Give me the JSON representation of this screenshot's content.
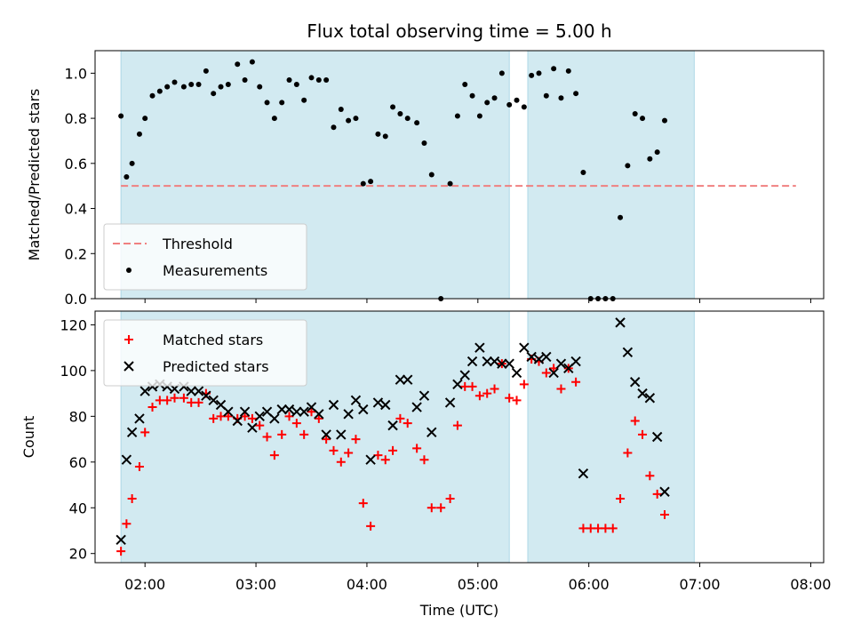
{
  "chart_data": {
    "title": "Flux total observing time = 5.00 h",
    "xlabel": "Time (UTC)",
    "x_ticks": [
      "02:00",
      "03:00",
      "04:00",
      "05:00",
      "06:00",
      "07:00",
      "08:00"
    ],
    "x_range": [
      "01:33",
      "08:07"
    ],
    "shaded_intervals": [
      [
        "01:47",
        "05:17"
      ],
      [
        "05:27",
        "06:57"
      ]
    ],
    "colors": {
      "shade": "#add8e6",
      "threshold": "#f08080",
      "measurements": "#000000",
      "matched": "#ff0000",
      "predicted": "#000000"
    },
    "panels": [
      {
        "type": "scatter",
        "ylabel": "Matched/Predicted stars",
        "ylim": [
          0,
          1.1
        ],
        "y_ticks": [
          "0.0",
          "0.2",
          "0.4",
          "0.6",
          "0.8",
          "1.0"
        ],
        "legend_position": "lower-left",
        "threshold": {
          "name": "Threshold",
          "value": 0.5,
          "x_start": "01:47",
          "x_end": "07:52"
        },
        "series": [
          {
            "name": "Measurements",
            "marker": "dot",
            "points": [
              [
                "01:47",
                0.81
              ],
              [
                "01:50",
                0.54
              ],
              [
                "01:53",
                0.6
              ],
              [
                "01:57",
                0.73
              ],
              [
                "02:00",
                0.8
              ],
              [
                "02:04",
                0.9
              ],
              [
                "02:08",
                0.92
              ],
              [
                "02:12",
                0.94
              ],
              [
                "02:16",
                0.96
              ],
              [
                "02:21",
                0.94
              ],
              [
                "02:25",
                0.95
              ],
              [
                "02:29",
                0.95
              ],
              [
                "02:33",
                1.01
              ],
              [
                "02:37",
                0.91
              ],
              [
                "02:41",
                0.94
              ],
              [
                "02:45",
                0.95
              ],
              [
                "02:50",
                1.04
              ],
              [
                "02:54",
                0.97
              ],
              [
                "02:58",
                1.05
              ],
              [
                "03:02",
                0.94
              ],
              [
                "03:06",
                0.87
              ],
              [
                "03:10",
                0.8
              ],
              [
                "03:14",
                0.87
              ],
              [
                "03:18",
                0.97
              ],
              [
                "03:22",
                0.95
              ],
              [
                "03:26",
                0.88
              ],
              [
                "03:30",
                0.98
              ],
              [
                "03:34",
                0.97
              ],
              [
                "03:38",
                0.97
              ],
              [
                "03:42",
                0.76
              ],
              [
                "03:46",
                0.84
              ],
              [
                "03:50",
                0.79
              ],
              [
                "03:54",
                0.8
              ],
              [
                "03:58",
                0.51
              ],
              [
                "04:02",
                0.52
              ],
              [
                "04:06",
                0.73
              ],
              [
                "04:10",
                0.72
              ],
              [
                "04:14",
                0.85
              ],
              [
                "04:18",
                0.82
              ],
              [
                "04:22",
                0.8
              ],
              [
                "04:27",
                0.78
              ],
              [
                "04:31",
                0.69
              ],
              [
                "04:35",
                0.55
              ],
              [
                "04:40",
                0.0
              ],
              [
                "04:45",
                0.51
              ],
              [
                "04:49",
                0.81
              ],
              [
                "04:53",
                0.95
              ],
              [
                "04:57",
                0.9
              ],
              [
                "05:01",
                0.81
              ],
              [
                "05:05",
                0.87
              ],
              [
                "05:09",
                0.89
              ],
              [
                "05:13",
                1.0
              ],
              [
                "05:17",
                0.86
              ],
              [
                "05:21",
                0.88
              ],
              [
                "05:25",
                0.85
              ],
              [
                "05:29",
                0.99
              ],
              [
                "05:33",
                1.0
              ],
              [
                "05:37",
                0.9
              ],
              [
                "05:41",
                1.02
              ],
              [
                "05:45",
                0.89
              ],
              [
                "05:49",
                1.01
              ],
              [
                "05:53",
                0.91
              ],
              [
                "05:57",
                0.56
              ],
              [
                "06:01",
                0.0
              ],
              [
                "06:05",
                0.0
              ],
              [
                "06:09",
                0.0
              ],
              [
                "06:13",
                0.0
              ],
              [
                "06:17",
                0.36
              ],
              [
                "06:21",
                0.59
              ],
              [
                "06:25",
                0.82
              ],
              [
                "06:29",
                0.8
              ],
              [
                "06:33",
                0.62
              ],
              [
                "06:37",
                0.65
              ],
              [
                "06:41",
                0.79
              ]
            ]
          }
        ]
      },
      {
        "type": "scatter",
        "ylabel": "Count",
        "ylim": [
          16,
          126
        ],
        "y_ticks": [
          "20",
          "40",
          "60",
          "80",
          "100",
          "120"
        ],
        "legend_position": "upper-left",
        "series": [
          {
            "name": "Matched stars",
            "marker": "plus",
            "points": [
              [
                "01:47",
                21
              ],
              [
                "01:50",
                33
              ],
              [
                "01:53",
                44
              ],
              [
                "01:57",
                58
              ],
              [
                "02:00",
                73
              ],
              [
                "02:04",
                84
              ],
              [
                "02:08",
                87
              ],
              [
                "02:12",
                87
              ],
              [
                "02:16",
                88
              ],
              [
                "02:21",
                88
              ],
              [
                "02:25",
                86
              ],
              [
                "02:29",
                86
              ],
              [
                "02:33",
                90
              ],
              [
                "02:37",
                79
              ],
              [
                "02:41",
                80
              ],
              [
                "02:45",
                80
              ],
              [
                "02:50",
                79
              ],
              [
                "02:54",
                80
              ],
              [
                "02:58",
                79
              ],
              [
                "03:02",
                76
              ],
              [
                "03:06",
                71
              ],
              [
                "03:10",
                63
              ],
              [
                "03:14",
                72
              ],
              [
                "03:18",
                80
              ],
              [
                "03:22",
                77
              ],
              [
                "03:26",
                72
              ],
              [
                "03:30",
                82
              ],
              [
                "03:34",
                79
              ],
              [
                "03:38",
                70
              ],
              [
                "03:42",
                65
              ],
              [
                "03:46",
                60
              ],
              [
                "03:50",
                64
              ],
              [
                "03:54",
                70
              ],
              [
                "03:58",
                42
              ],
              [
                "04:02",
                32
              ],
              [
                "04:06",
                63
              ],
              [
                "04:10",
                61
              ],
              [
                "04:14",
                65
              ],
              [
                "04:18",
                79
              ],
              [
                "04:22",
                77
              ],
              [
                "04:27",
                66
              ],
              [
                "04:31",
                61
              ],
              [
                "04:35",
                40
              ],
              [
                "04:40",
                40
              ],
              [
                "04:45",
                44
              ],
              [
                "04:49",
                76
              ],
              [
                "04:53",
                93
              ],
              [
                "04:57",
                93
              ],
              [
                "05:01",
                89
              ],
              [
                "05:05",
                90
              ],
              [
                "05:09",
                92
              ],
              [
                "05:13",
                103
              ],
              [
                "05:17",
                88
              ],
              [
                "05:21",
                87
              ],
              [
                "05:25",
                94
              ],
              [
                "05:29",
                105
              ],
              [
                "05:33",
                104
              ],
              [
                "05:37",
                99
              ],
              [
                "05:41",
                101
              ],
              [
                "05:45",
                92
              ],
              [
                "05:49",
                101
              ],
              [
                "05:53",
                95
              ],
              [
                "05:57",
                31
              ],
              [
                "06:01",
                31
              ],
              [
                "06:05",
                31
              ],
              [
                "06:09",
                31
              ],
              [
                "06:13",
                31
              ],
              [
                "06:17",
                44
              ],
              [
                "06:21",
                64
              ],
              [
                "06:25",
                78
              ],
              [
                "06:29",
                72
              ],
              [
                "06:33",
                54
              ],
              [
                "06:37",
                46
              ],
              [
                "06:41",
                37
              ]
            ]
          },
          {
            "name": "Predicted stars",
            "marker": "x",
            "points": [
              [
                "01:47",
                26
              ],
              [
                "01:50",
                61
              ],
              [
                "01:53",
                73
              ],
              [
                "01:57",
                79
              ],
              [
                "02:00",
                91
              ],
              [
                "02:04",
                93
              ],
              [
                "02:08",
                94
              ],
              [
                "02:12",
                93
              ],
              [
                "02:16",
                92
              ],
              [
                "02:21",
                93
              ],
              [
                "02:25",
                91
              ],
              [
                "02:29",
                91
              ],
              [
                "02:33",
                89
              ],
              [
                "02:37",
                87
              ],
              [
                "02:41",
                85
              ],
              [
                "02:45",
                82
              ],
              [
                "02:50",
                78
              ],
              [
                "02:54",
                82
              ],
              [
                "02:58",
                75
              ],
              [
                "03:02",
                80
              ],
              [
                "03:06",
                82
              ],
              [
                "03:10",
                79
              ],
              [
                "03:14",
                83
              ],
              [
                "03:18",
                83
              ],
              [
                "03:22",
                82
              ],
              [
                "03:26",
                82
              ],
              [
                "03:30",
                84
              ],
              [
                "03:34",
                81
              ],
              [
                "03:38",
                72
              ],
              [
                "03:42",
                85
              ],
              [
                "03:46",
                72
              ],
              [
                "03:50",
                81
              ],
              [
                "03:54",
                87
              ],
              [
                "03:58",
                83
              ],
              [
                "04:02",
                61
              ],
              [
                "04:06",
                86
              ],
              [
                "04:10",
                85
              ],
              [
                "04:14",
                76
              ],
              [
                "04:18",
                96
              ],
              [
                "04:22",
                96
              ],
              [
                "04:27",
                84
              ],
              [
                "04:31",
                89
              ],
              [
                "04:35",
                73
              ],
              [
                "04:45",
                86
              ],
              [
                "04:49",
                94
              ],
              [
                "04:53",
                98
              ],
              [
                "04:57",
                104
              ],
              [
                "05:01",
                110
              ],
              [
                "05:05",
                104
              ],
              [
                "05:09",
                104
              ],
              [
                "05:13",
                103
              ],
              [
                "05:17",
                103
              ],
              [
                "05:21",
                99
              ],
              [
                "05:25",
                110
              ],
              [
                "05:29",
                106
              ],
              [
                "05:33",
                105
              ],
              [
                "05:37",
                106
              ],
              [
                "05:41",
                99
              ],
              [
                "05:45",
                103
              ],
              [
                "05:49",
                101
              ],
              [
                "05:53",
                104
              ],
              [
                "05:57",
                55
              ],
              [
                "06:17",
                121
              ],
              [
                "06:21",
                108
              ],
              [
                "06:25",
                95
              ],
              [
                "06:29",
                90
              ],
              [
                "06:33",
                88
              ],
              [
                "06:37",
                71
              ],
              [
                "06:41",
                47
              ]
            ]
          }
        ]
      }
    ]
  }
}
